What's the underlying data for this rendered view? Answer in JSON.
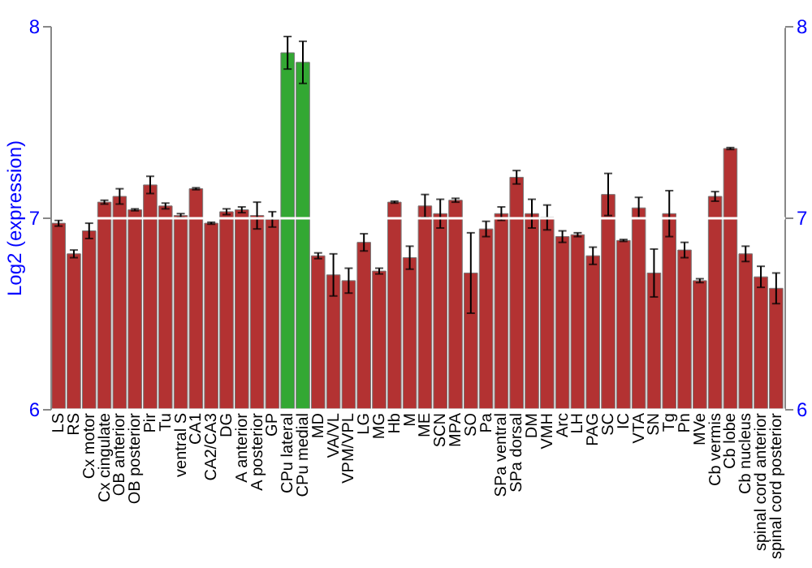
{
  "chart_data": {
    "type": "bar",
    "ylabel": "Log2 (expression)",
    "categories": [
      "LS",
      "RS",
      "Cx motor",
      "Cx cingulate",
      "OB anterior",
      "OB posterior",
      "Pir",
      "Tu",
      "ventral S",
      "CA1",
      "CA2/CA3",
      "DG",
      "A anterior",
      "A posterior",
      "GP",
      "CPu lateral",
      "CPu medial",
      "MD",
      "VA/VL",
      "VPM/VPL",
      "LG",
      "MG",
      "Hb",
      "M",
      "ME",
      "SCN",
      "MPA",
      "SO",
      "Pa",
      "SPa ventral",
      "SPa dorsal",
      "DM",
      "VMH",
      "Arc",
      "LH",
      "PAG",
      "SC",
      "IC",
      "VTA",
      "SN",
      "Tg",
      "Pn",
      "MVe",
      "Cb vermis",
      "Cb lobe",
      "Cb nucleus",
      "spinal cord anterior",
      "spinal cord posterior"
    ],
    "values": [
      6.97,
      6.81,
      6.93,
      7.08,
      7.11,
      7.04,
      7.17,
      7.06,
      7.01,
      7.15,
      6.97,
      7.03,
      7.04,
      7.01,
      6.99,
      7.86,
      7.81,
      6.8,
      6.7,
      6.67,
      6.87,
      6.72,
      7.08,
      6.79,
      7.06,
      7.02,
      7.09,
      6.71,
      6.94,
      7.02,
      7.21,
      7.02,
      7.0,
      6.9,
      6.91,
      6.8,
      7.12,
      6.88,
      7.05,
      6.71,
      7.02,
      6.83,
      6.67,
      7.11,
      7.36,
      6.81,
      6.69,
      6.63
    ],
    "errors": [
      0.015,
      0.02,
      0.04,
      0.01,
      0.04,
      0.005,
      0.045,
      0.015,
      0.01,
      0.005,
      0.005,
      0.015,
      0.015,
      0.07,
      0.04,
      0.085,
      0.11,
      0.015,
      0.11,
      0.065,
      0.045,
      0.015,
      0.005,
      0.06,
      0.06,
      0.075,
      0.01,
      0.21,
      0.04,
      0.035,
      0.035,
      0.075,
      0.065,
      0.03,
      0.01,
      0.045,
      0.11,
      0.005,
      0.055,
      0.125,
      0.12,
      0.04,
      0.01,
      0.025,
      0.005,
      0.04,
      0.055,
      0.08
    ],
    "colors": [
      "#b33232",
      "#b33232",
      "#b33232",
      "#b33232",
      "#b33232",
      "#b33232",
      "#b33232",
      "#b33232",
      "#b33232",
      "#b33232",
      "#b33232",
      "#b33232",
      "#b33232",
      "#b33232",
      "#b33232",
      "#33a833",
      "#33a833",
      "#b33232",
      "#b33232",
      "#b33232",
      "#b33232",
      "#b33232",
      "#b33232",
      "#b33232",
      "#b33232",
      "#b33232",
      "#b33232",
      "#b33232",
      "#b33232",
      "#b33232",
      "#b33232",
      "#b33232",
      "#b33232",
      "#b33232",
      "#b33232",
      "#b33232",
      "#b33232",
      "#b33232",
      "#b33232",
      "#b33232",
      "#b33232",
      "#b33232",
      "#b33232",
      "#b33232",
      "#b33232",
      "#b33232",
      "#b33232",
      "#b33232"
    ],
    "ylim": [
      6,
      8
    ],
    "yticks": [
      6,
      7,
      8
    ],
    "y2lim": [
      6,
      8
    ],
    "y2ticks": [
      6,
      7,
      8
    ],
    "grid": "y"
  }
}
